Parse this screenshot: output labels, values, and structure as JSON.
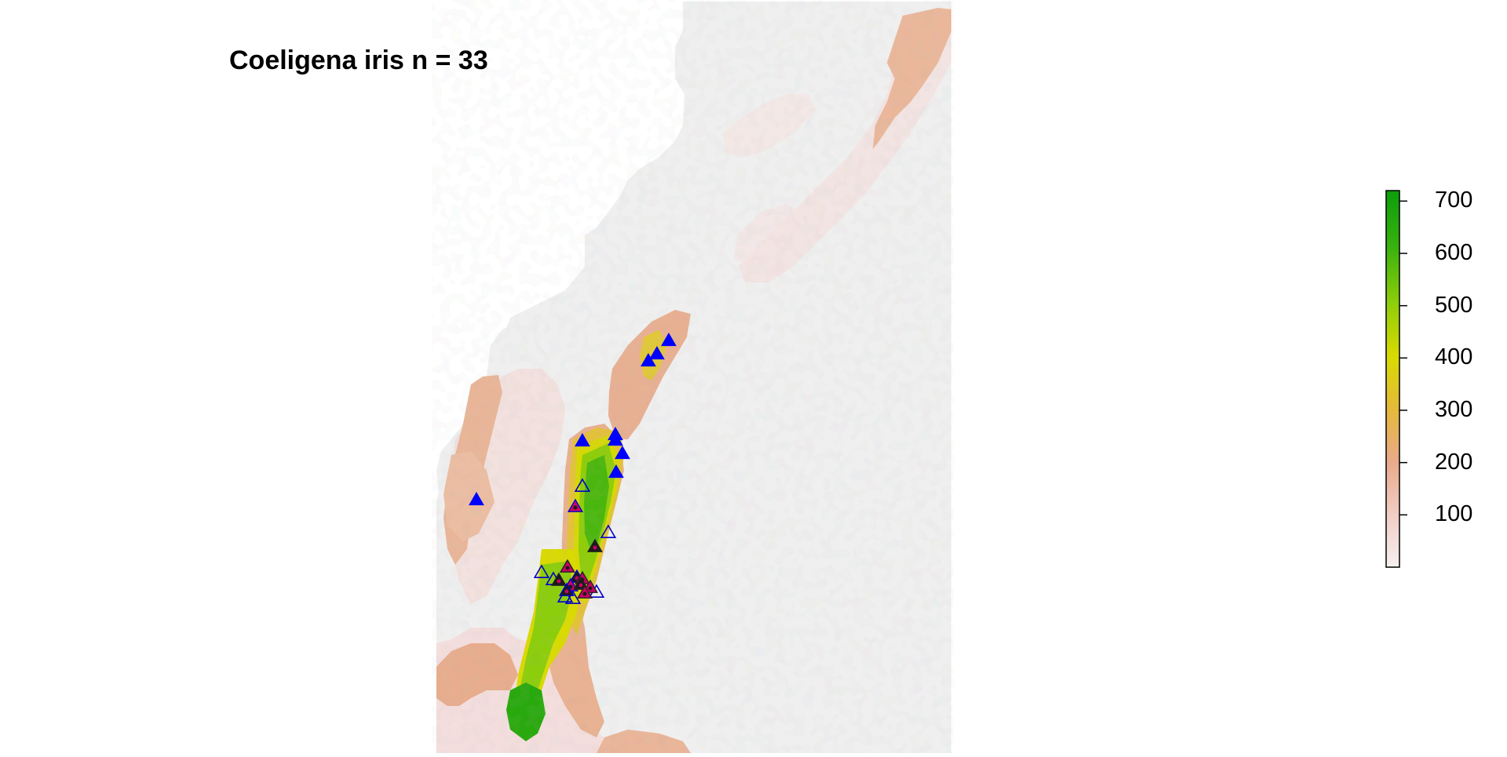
{
  "map": {
    "title": "Coeligena iris n = 33",
    "background_color": "#efefef",
    "colorscale": [
      "#f6e2e0",
      "#eeb79f",
      "#e7a97a",
      "#e3bd3a",
      "#d9d902",
      "#8fce0a",
      "#39b20e",
      "#0b9e0b"
    ]
  },
  "legend": {
    "min": 0,
    "max": 720,
    "ticks": [
      {
        "value": 700,
        "label": "700"
      },
      {
        "value": 600,
        "label": "600"
      },
      {
        "value": 500,
        "label": "500"
      },
      {
        "value": 400,
        "label": "400"
      },
      {
        "value": 300,
        "label": "300"
      },
      {
        "value": 200,
        "label": "200"
      },
      {
        "value": 100,
        "label": "100"
      }
    ]
  },
  "markers": {
    "filled_color": "#0000ff",
    "open_color": "#0000cc",
    "dot_colors": [
      "#cc0066",
      "#1a1a1a"
    ]
  }
}
